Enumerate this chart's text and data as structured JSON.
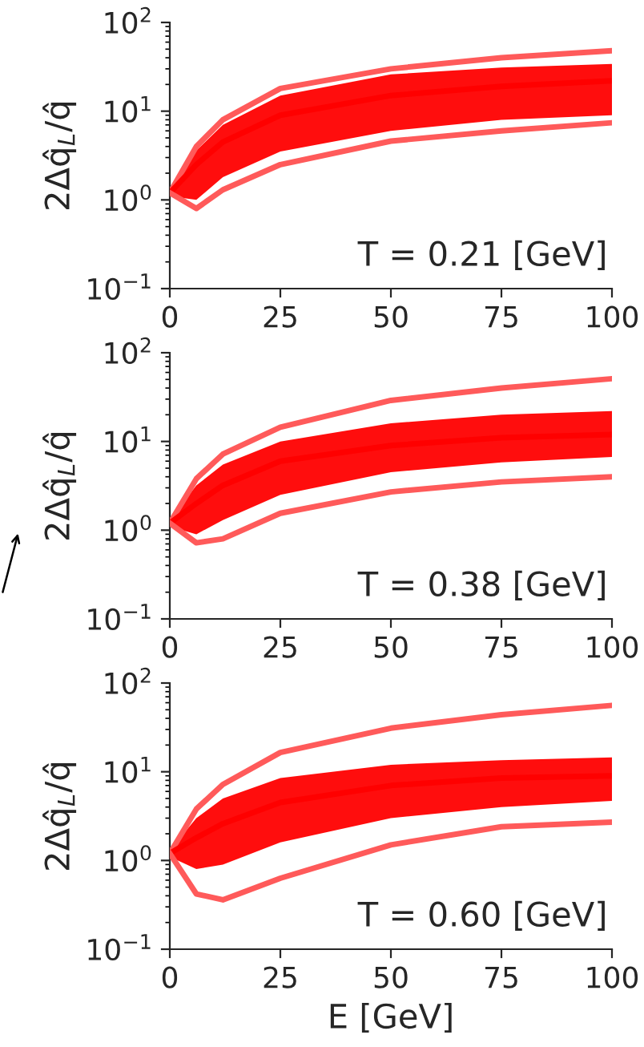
{
  "chart_data": [
    {
      "type": "line",
      "ylabel": "2Δq̂$_{L}$/q̂",
      "annotations": [
        "T = 0.21 [GeV]"
      ],
      "log": "y",
      "grid": false,
      "marker": "none",
      "line_style": "solid",
      "x": [
        0,
        6,
        12,
        25,
        50,
        75,
        100
      ],
      "xlim": [
        0,
        100
      ],
      "xticks": [
        0,
        25,
        50,
        75,
        100
      ],
      "ylim": [
        0.1,
        100
      ],
      "yticks": [
        {
          "value": 0.1,
          "label": "10$^{−1}$"
        },
        {
          "value": 1,
          "label": "10$^{0}$"
        },
        {
          "value": 10,
          "label": "10$^{1}$"
        },
        {
          "value": 100,
          "label": "10$^{2}$"
        }
      ],
      "series": [
        {
          "color": "#ff5a5a",
          "values": [
            1.2,
            4,
            8,
            18,
            30,
            40,
            48
          ]
        },
        {
          "color": "#ff0000",
          "values": [
            1.2,
            2.5,
            4.5,
            9,
            15,
            19,
            22
          ],
          "lower": [
            1.1,
            1.0,
            1.8,
            3.5,
            6,
            8,
            9
          ],
          "upper": [
            1.3,
            3.6,
            7,
            15,
            26,
            31,
            34
          ]
        },
        {
          "color": "#ff5a5a",
          "values": [
            1.2,
            0.8,
            1.3,
            2.5,
            4.6,
            6.0,
            7.4
          ]
        }
      ]
    },
    {
      "type": "line",
      "ylabel": "2Δq̂$_{L}$/q̂",
      "annotations": [
        "T = 0.38 [GeV]"
      ],
      "log": "y",
      "grid": false,
      "marker": "none",
      "line_style": "solid",
      "x": [
        0,
        6,
        12,
        25,
        50,
        75,
        100
      ],
      "xlim": [
        0,
        100
      ],
      "xticks": [
        0,
        25,
        50,
        75,
        100
      ],
      "ylim": [
        0.1,
        100
      ],
      "yticks": [
        {
          "value": 0.1,
          "label": "10$^{−1}$"
        },
        {
          "value": 1,
          "label": "10$^{0}$"
        },
        {
          "value": 10,
          "label": "10$^{1}$"
        },
        {
          "value": 100,
          "label": "10$^{2}$"
        }
      ],
      "series": [
        {
          "color": "#ff5a5a",
          "values": [
            1.2,
            3.8,
            7.2,
            14.5,
            29,
            40,
            51
          ]
        },
        {
          "color": "#ff0000",
          "values": [
            1.2,
            2.0,
            3.2,
            6,
            9,
            11,
            12
          ],
          "lower": [
            1.1,
            0.9,
            1.3,
            2.5,
            4.5,
            5.8,
            6.7
          ],
          "upper": [
            1.3,
            3.2,
            5.5,
            10,
            16,
            20,
            22
          ]
        },
        {
          "color": "#ff5a5a",
          "values": [
            1.2,
            0.72,
            0.8,
            1.55,
            2.7,
            3.5,
            4.0
          ]
        }
      ]
    },
    {
      "type": "line",
      "ylabel": "2Δq̂$_{L}$/q̂",
      "xlabel": "E [GeV]",
      "annotations": [
        "T = 0.60 [GeV]"
      ],
      "log": "y",
      "grid": false,
      "marker": "none",
      "line_style": "solid",
      "x": [
        0,
        6,
        12,
        25,
        50,
        75,
        100
      ],
      "xlim": [
        0,
        100
      ],
      "xticks": [
        0,
        25,
        50,
        75,
        100
      ],
      "ylim": [
        0.1,
        100
      ],
      "yticks": [
        {
          "value": 0.1,
          "label": "10$^{−1}$"
        },
        {
          "value": 1,
          "label": "10$^{0}$"
        },
        {
          "value": 10,
          "label": "10$^{1}$"
        },
        {
          "value": 100,
          "label": "10$^{2}$"
        }
      ],
      "series": [
        {
          "color": "#ff5a5a",
          "values": [
            1.2,
            3.8,
            7.2,
            16.5,
            31,
            44,
            56
          ]
        },
        {
          "color": "#ff0000",
          "values": [
            1.2,
            1.8,
            2.6,
            4.5,
            7,
            8.5,
            9
          ],
          "lower": [
            1.1,
            0.8,
            0.9,
            1.6,
            3,
            4,
            4.7
          ],
          "upper": [
            1.3,
            3.0,
            5.0,
            8.5,
            12,
            13.5,
            14.5
          ]
        },
        {
          "color": "#ff5a5a",
          "values": [
            1.2,
            0.42,
            0.36,
            0.63,
            1.5,
            2.4,
            2.7
          ]
        }
      ]
    }
  ]
}
